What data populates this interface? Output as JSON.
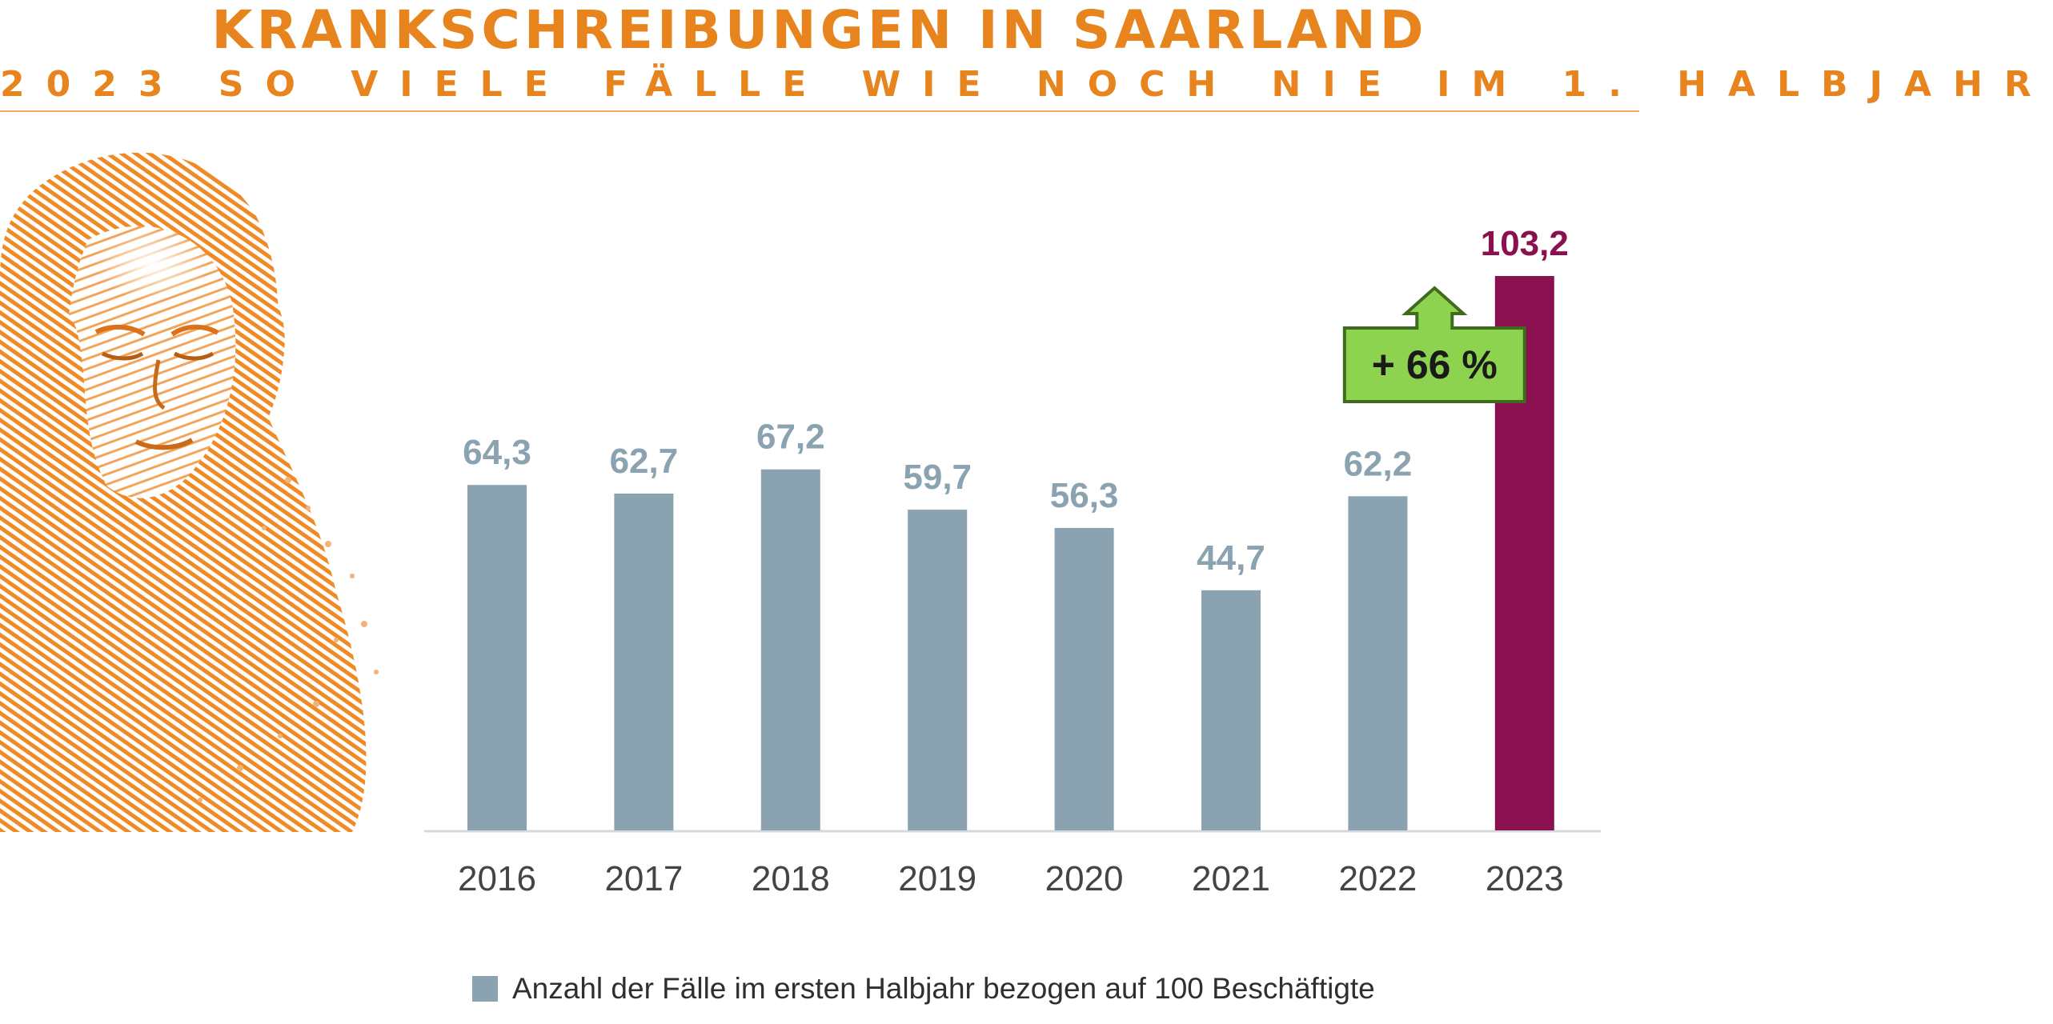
{
  "title": "KRANKSCHREIBUNGEN IN SAARLAND",
  "subtitle": "2023 SO VIELE FÄLLE WIE NOCH NIE IM 1. HALBJAHR",
  "colors": {
    "accent": "#e8841e",
    "bar": "#8ba2b0",
    "highlight_bar": "#8b1050",
    "callout_fill": "#8dd34f",
    "callout_border": "#3f6b1e",
    "axis": "#d4d9de",
    "text_dark": "#333333"
  },
  "illustration": {
    "icon": "woman-with-headache-engraving"
  },
  "chart_data": {
    "type": "bar",
    "title": "KRANKSCHREIBUNGEN IN SAARLAND",
    "categories": [
      "2016",
      "2017",
      "2018",
      "2019",
      "2020",
      "2021",
      "2022",
      "2023"
    ],
    "series": [
      {
        "name": "Anzahl der Fälle im ersten Halbjahr bezogen auf 100 Beschäftigte",
        "values": [
          64.3,
          62.7,
          67.2,
          59.7,
          56.3,
          44.7,
          62.2,
          103.2
        ]
      }
    ],
    "data_labels": [
      "64,3",
      "62,7",
      "67,2",
      "59,7",
      "56,3",
      "44,7",
      "62,2",
      "103,2"
    ],
    "highlight_category": "2023",
    "ylim": [
      0,
      103.2
    ],
    "grid": false,
    "legend_position": "bottom",
    "annotation": {
      "text": "+ 66 %",
      "shape": "up-arrow-callout",
      "category": "2023"
    }
  }
}
